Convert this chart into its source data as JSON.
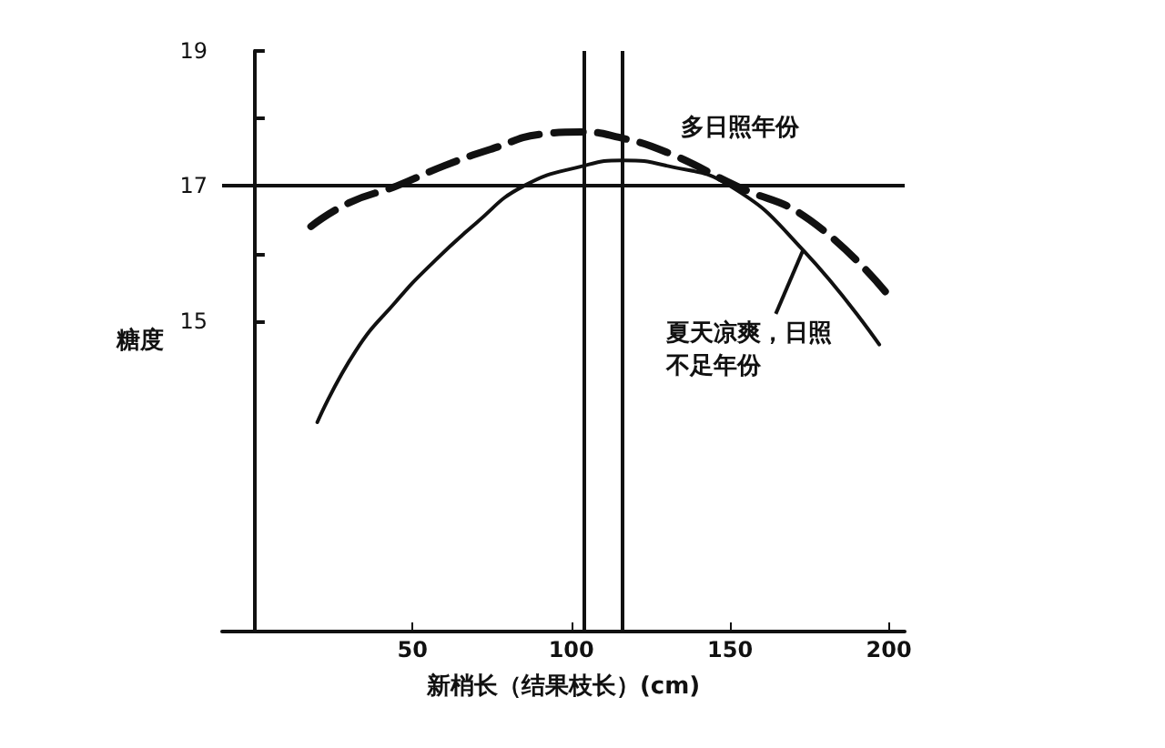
{
  "chart_data": {
    "type": "line",
    "xlabel": "新梢长（结果枝长）(cm)",
    "ylabel": "糖度",
    "xlim": [
      -10,
      205
    ],
    "xticks": [
      50,
      100,
      150,
      200
    ],
    "ylim": [
      10.4,
      19
    ],
    "yticks": [
      {
        "value": 15,
        "label": "15"
      },
      {
        "value": 16,
        "label": null
      },
      {
        "value": 17,
        "label": "17"
      },
      {
        "value": 18,
        "label": null
      },
      {
        "value": 19,
        "label": "19"
      }
    ],
    "series": [
      {
        "name": "多日照年份",
        "color": "#111111",
        "line_style": "dashed",
        "x": [
          18,
          30,
          45,
          60,
          75,
          91,
          103,
          115,
          130,
          152,
          175,
          199.5
        ],
        "values": [
          16.4,
          16.75,
          17,
          17.3,
          17.55,
          17.77,
          17.8,
          17.72,
          17.5,
          17,
          16.5,
          15.4
        ]
      },
      {
        "name": "夏天凉爽，日照不足年份",
        "color": "#111111",
        "line_style": "solid",
        "x": [
          20,
          32,
          45,
          55,
          70,
          85,
          104,
          116,
          130,
          150,
          173,
          197
        ],
        "values": [
          13.5,
          14.55,
          15.3,
          15.8,
          16.45,
          17,
          17.3,
          17.38,
          17.3,
          17,
          16.05,
          14.65
        ]
      }
    ],
    "ref_lines": [
      {
        "axis": "y",
        "value": 17
      },
      {
        "axis": "x",
        "value": 104
      },
      {
        "axis": "x",
        "value": 116
      }
    ],
    "marker": "none",
    "grid": false,
    "legend": false
  }
}
